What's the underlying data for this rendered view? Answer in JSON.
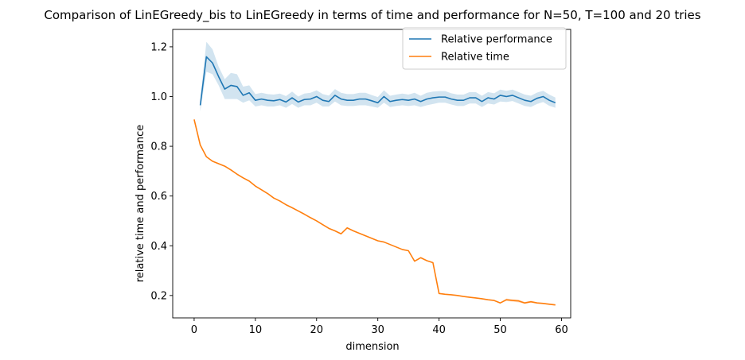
{
  "chart_data": {
    "type": "line",
    "title": "Comparison of LinEGreedy_bis to LinEGreedy in terms of time and performance for N=50, T=100 and 20 tries",
    "xlabel": "dimension",
    "ylabel": "relative time and performance",
    "xlim": [
      -3.5,
      61.5
    ],
    "ylim": [
      0.11,
      1.27
    ],
    "xticks": [
      0,
      10,
      20,
      30,
      40,
      50,
      60
    ],
    "yticks": [
      0.2,
      0.4,
      0.6,
      0.8,
      1.0,
      1.2
    ],
    "xtick_labels": [
      "0",
      "10",
      "20",
      "30",
      "40",
      "50",
      "60"
    ],
    "ytick_labels": [
      "0.2",
      "0.4",
      "0.6",
      "0.8",
      "1.0",
      "1.2"
    ],
    "grid": false,
    "legend_position": "top-right",
    "series": [
      {
        "name": "Relative performance",
        "color": "#1f77b4",
        "band_color": "#1f77b4",
        "x": [
          1,
          2,
          3,
          4,
          5,
          6,
          7,
          8,
          9,
          10,
          11,
          12,
          13,
          14,
          15,
          16,
          17,
          18,
          19,
          20,
          21,
          22,
          23,
          24,
          25,
          26,
          27,
          28,
          29,
          30,
          31,
          32,
          33,
          34,
          35,
          36,
          37,
          38,
          39,
          40,
          41,
          42,
          43,
          44,
          45,
          46,
          47,
          48,
          49,
          50,
          51,
          52,
          53,
          54,
          55,
          56,
          57,
          58,
          59
        ],
        "y": [
          0.965,
          1.16,
          1.135,
          1.08,
          1.03,
          1.045,
          1.04,
          1.005,
          1.015,
          0.985,
          0.99,
          0.985,
          0.983,
          0.988,
          0.978,
          0.995,
          0.978,
          0.988,
          0.99,
          1.0,
          0.985,
          0.98,
          1.005,
          0.99,
          0.985,
          0.985,
          0.99,
          0.99,
          0.983,
          0.975,
          1.0,
          0.98,
          0.985,
          0.988,
          0.985,
          0.99,
          0.98,
          0.99,
          0.995,
          0.998,
          0.998,
          0.99,
          0.985,
          0.985,
          0.995,
          0.995,
          0.98,
          0.995,
          0.99,
          1.005,
          1.0,
          1.005,
          0.995,
          0.985,
          0.98,
          0.993,
          1.0,
          0.985,
          0.975
        ],
        "y_low": [
          0.94,
          1.1,
          1.09,
          1.045,
          0.99,
          0.99,
          0.99,
          0.975,
          0.985,
          0.96,
          0.965,
          0.96,
          0.96,
          0.965,
          0.955,
          0.97,
          0.955,
          0.965,
          0.965,
          0.975,
          0.96,
          0.96,
          0.98,
          0.965,
          0.962,
          0.962,
          0.965,
          0.965,
          0.96,
          0.955,
          0.975,
          0.958,
          0.962,
          0.965,
          0.962,
          0.965,
          0.958,
          0.965,
          0.97,
          0.975,
          0.975,
          0.968,
          0.962,
          0.962,
          0.972,
          0.972,
          0.958,
          0.972,
          0.968,
          0.98,
          0.978,
          0.982,
          0.972,
          0.962,
          0.958,
          0.97,
          0.978,
          0.963,
          0.955
        ],
        "y_high": [
          0.99,
          1.22,
          1.19,
          1.12,
          1.07,
          1.095,
          1.09,
          1.04,
          1.045,
          1.01,
          1.015,
          1.01,
          1.008,
          1.012,
          1.002,
          1.02,
          1.0,
          1.012,
          1.015,
          1.025,
          1.01,
          1.004,
          1.03,
          1.015,
          1.01,
          1.01,
          1.015,
          1.015,
          1.006,
          0.998,
          1.025,
          1.003,
          1.008,
          1.012,
          1.008,
          1.015,
          1.003,
          1.015,
          1.02,
          1.022,
          1.022,
          1.013,
          1.008,
          1.008,
          1.018,
          1.018,
          1.003,
          1.018,
          1.013,
          1.028,
          1.023,
          1.028,
          1.018,
          1.008,
          1.003,
          1.016,
          1.023,
          1.008,
          0.996
        ]
      },
      {
        "name": "Relative time",
        "color": "#ff7f0e",
        "band_color": "#ff7f0e",
        "x": [
          0,
          1,
          2,
          3,
          4,
          5,
          6,
          7,
          8,
          9,
          10,
          11,
          12,
          13,
          14,
          15,
          16,
          17,
          18,
          19,
          20,
          21,
          22,
          23,
          24,
          25,
          26,
          27,
          28,
          29,
          30,
          31,
          32,
          33,
          34,
          35,
          36,
          37,
          38,
          39,
          40,
          41,
          42,
          43,
          44,
          45,
          46,
          47,
          48,
          49,
          50,
          51,
          52,
          53,
          54,
          55,
          56,
          57,
          58,
          59
        ],
        "y": [
          0.908,
          0.805,
          0.758,
          0.74,
          0.73,
          0.72,
          0.705,
          0.688,
          0.673,
          0.66,
          0.64,
          0.625,
          0.61,
          0.592,
          0.58,
          0.565,
          0.553,
          0.54,
          0.527,
          0.513,
          0.5,
          0.485,
          0.47,
          0.46,
          0.448,
          0.472,
          0.46,
          0.45,
          0.44,
          0.43,
          0.42,
          0.415,
          0.405,
          0.395,
          0.385,
          0.38,
          0.338,
          0.352,
          0.34,
          0.332,
          0.208,
          0.205,
          0.203,
          0.2,
          0.196,
          0.193,
          0.19,
          0.187,
          0.183,
          0.18,
          0.17,
          0.183,
          0.18,
          0.178,
          0.17,
          0.175,
          0.17,
          0.168,
          0.165,
          0.162
        ],
        "y_low": [
          0.908,
          0.803,
          0.756,
          0.738,
          0.728,
          0.718,
          0.703,
          0.686,
          0.671,
          0.658,
          0.638,
          0.623,
          0.608,
          0.59,
          0.578,
          0.563,
          0.551,
          0.538,
          0.525,
          0.511,
          0.498,
          0.483,
          0.468,
          0.458,
          0.446,
          0.47,
          0.458,
          0.448,
          0.438,
          0.428,
          0.418,
          0.413,
          0.403,
          0.393,
          0.383,
          0.378,
          0.336,
          0.35,
          0.338,
          0.33,
          0.206,
          0.203,
          0.201,
          0.198,
          0.194,
          0.191,
          0.188,
          0.185,
          0.181,
          0.178,
          0.168,
          0.178,
          0.175,
          0.172,
          0.166,
          0.171,
          0.167,
          0.165,
          0.162,
          0.159
        ],
        "y_high": [
          0.908,
          0.807,
          0.76,
          0.742,
          0.732,
          0.722,
          0.707,
          0.69,
          0.675,
          0.662,
          0.642,
          0.627,
          0.612,
          0.594,
          0.582,
          0.567,
          0.555,
          0.542,
          0.529,
          0.515,
          0.502,
          0.487,
          0.472,
          0.462,
          0.45,
          0.474,
          0.462,
          0.452,
          0.442,
          0.432,
          0.422,
          0.417,
          0.407,
          0.397,
          0.387,
          0.382,
          0.34,
          0.354,
          0.342,
          0.334,
          0.21,
          0.207,
          0.205,
          0.202,
          0.198,
          0.195,
          0.192,
          0.189,
          0.185,
          0.182,
          0.172,
          0.188,
          0.185,
          0.184,
          0.174,
          0.179,
          0.173,
          0.171,
          0.168,
          0.165
        ]
      }
    ]
  }
}
